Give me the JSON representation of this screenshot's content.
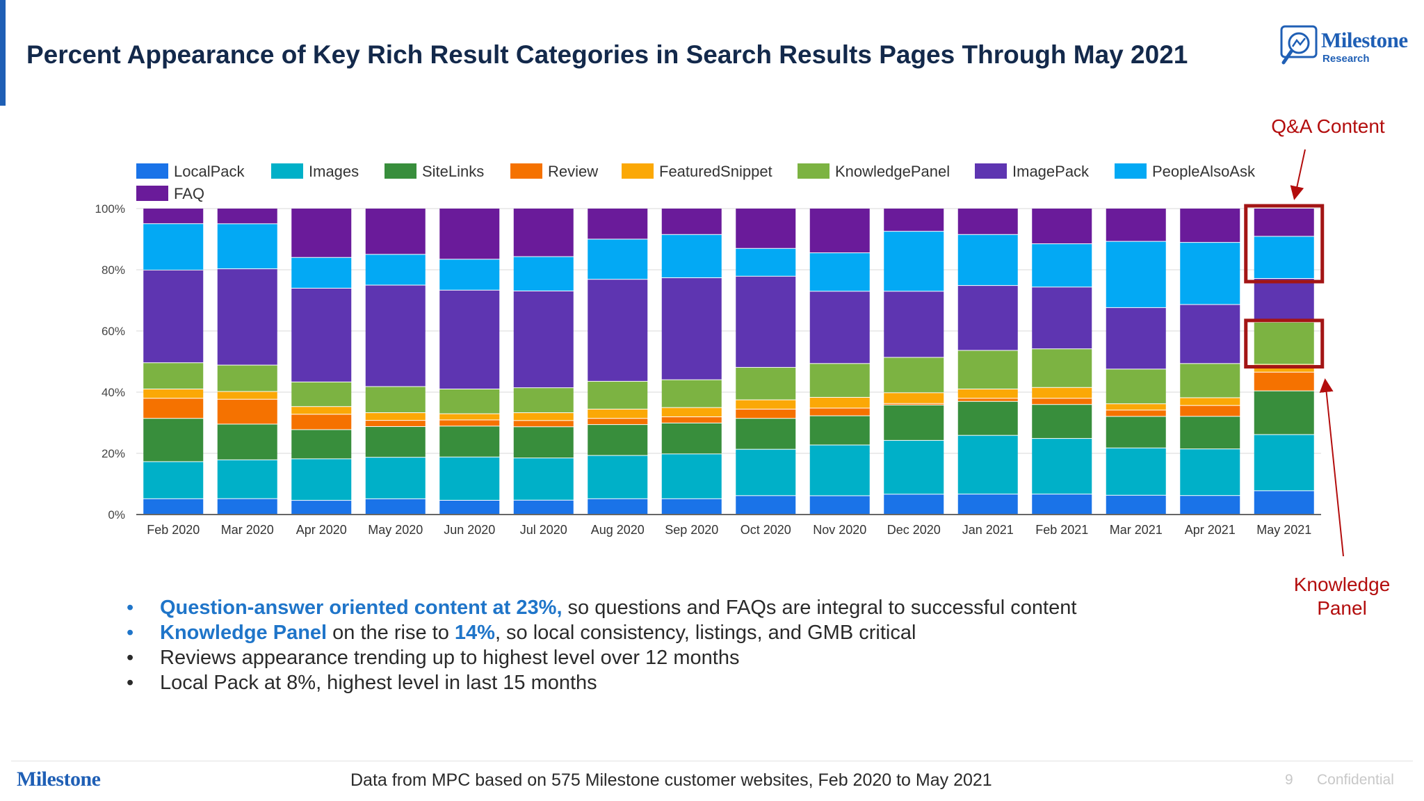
{
  "title": "Percent Appearance of Key Rich Result Categories in Search Results Pages Through May 2021",
  "logo": {
    "name": "Milestone",
    "sub": "Research"
  },
  "callouts": {
    "qa": "Q&A Content",
    "kp_line1": "Knowledge",
    "kp_line2": "Panel"
  },
  "bullets": [
    {
      "hl": "Question-answer oriented content at 23%,",
      "rest": " so questions and FAQs are integral to successful content"
    },
    {
      "hl": "Knowledge Panel",
      "mid": " on the rise to ",
      "hl2": "14%",
      "rest": ", so local consistency, listings, and GMB critical"
    },
    {
      "rest": "Reviews appearance trending up to highest level over 12 months"
    },
    {
      "rest": "Local Pack at 8%, highest level in last 15 months"
    }
  ],
  "footer": {
    "logo": "Milestone",
    "source": "Data from MPC based on 575 Milestone customer websites, Feb 2020 to May 2021",
    "page": "9",
    "confidential": "Confidential"
  },
  "colors": {
    "accent": "#1f5fb5",
    "highlight": "#1f75c9",
    "callout": "#b30d0d",
    "title": "#13294b"
  },
  "chart_data": {
    "type": "bar",
    "stacked": true,
    "title": "",
    "xlabel": "",
    "ylabel": "",
    "ylim": [
      0,
      100
    ],
    "yticks": [
      "0%",
      "20%",
      "40%",
      "60%",
      "80%",
      "100%"
    ],
    "grid": true,
    "legend_position": "top",
    "categories": [
      "Feb 2020",
      "Mar 2020",
      "Apr 2020",
      "May 2020",
      "Jun 2020",
      "Jul 2020",
      "Aug 2020",
      "Sep 2020",
      "Oct 2020",
      "Nov 2020",
      "Dec 2020",
      "Jan 2021",
      "Feb 2021",
      "Mar 2021",
      "Apr 2021",
      "May 2021"
    ],
    "series": [
      {
        "name": "LocalPack",
        "color": "#1a73e8",
        "values": [
          5,
          5,
          4.5,
          5,
          4.5,
          4.5,
          5,
          5,
          6,
          6,
          6.5,
          6.5,
          6.5,
          6,
          6,
          7.5
        ]
      },
      {
        "name": "Images",
        "color": "#00b0c8",
        "values": [
          12,
          12.5,
          13.5,
          13.5,
          14,
          13.5,
          14,
          14.5,
          15,
          16.5,
          17.5,
          19,
          18,
          15,
          15,
          18
        ]
      },
      {
        "name": "SiteLinks",
        "color": "#388e3c",
        "values": [
          14,
          11.5,
          9.5,
          10,
          10,
          10,
          10,
          10,
          10,
          9.5,
          11.5,
          11,
          11,
          10,
          10.5,
          14
        ]
      },
      {
        "name": "Review",
        "color": "#f57200",
        "values": [
          6.5,
          8,
          5,
          2,
          2,
          2,
          2,
          2,
          3,
          2.5,
          0.5,
          1,
          2,
          2,
          3.5,
          6
        ]
      },
      {
        "name": "FeaturedSnippet",
        "color": "#fba806",
        "values": [
          3,
          2.5,
          2.5,
          2.5,
          2,
          2.5,
          3,
          3,
          3,
          3.5,
          3.5,
          3,
          3.5,
          2,
          2.5,
          2.5
        ]
      },
      {
        "name": "KnowledgePanel",
        "color": "#7cb342",
        "values": [
          8.5,
          8.5,
          8,
          8.5,
          8,
          8,
          9,
          9,
          10.5,
          11,
          11.5,
          12.5,
          12.5,
          11,
          11,
          13.5
        ]
      },
      {
        "name": "ImagePack",
        "color": "#5e35b1",
        "values": [
          30,
          31,
          30.5,
          33,
          32,
          31,
          33,
          33,
          29.5,
          23.5,
          21.5,
          21,
          20,
          19.5,
          19,
          14
        ]
      },
      {
        "name": "PeopleAlsoAsk",
        "color": "#03a9f4",
        "values": [
          15,
          14.5,
          10,
          10,
          10,
          11,
          13,
          14,
          9,
          12.5,
          19.5,
          16.5,
          14,
          21,
          20,
          13.5
        ]
      },
      {
        "name": "FAQ",
        "color": "#6a1b9a",
        "values": [
          5,
          5,
          16,
          15,
          16.5,
          15.5,
          10,
          8.5,
          13,
          14.5,
          7.5,
          8.5,
          11.5,
          10.5,
          11,
          9
        ]
      }
    ]
  }
}
